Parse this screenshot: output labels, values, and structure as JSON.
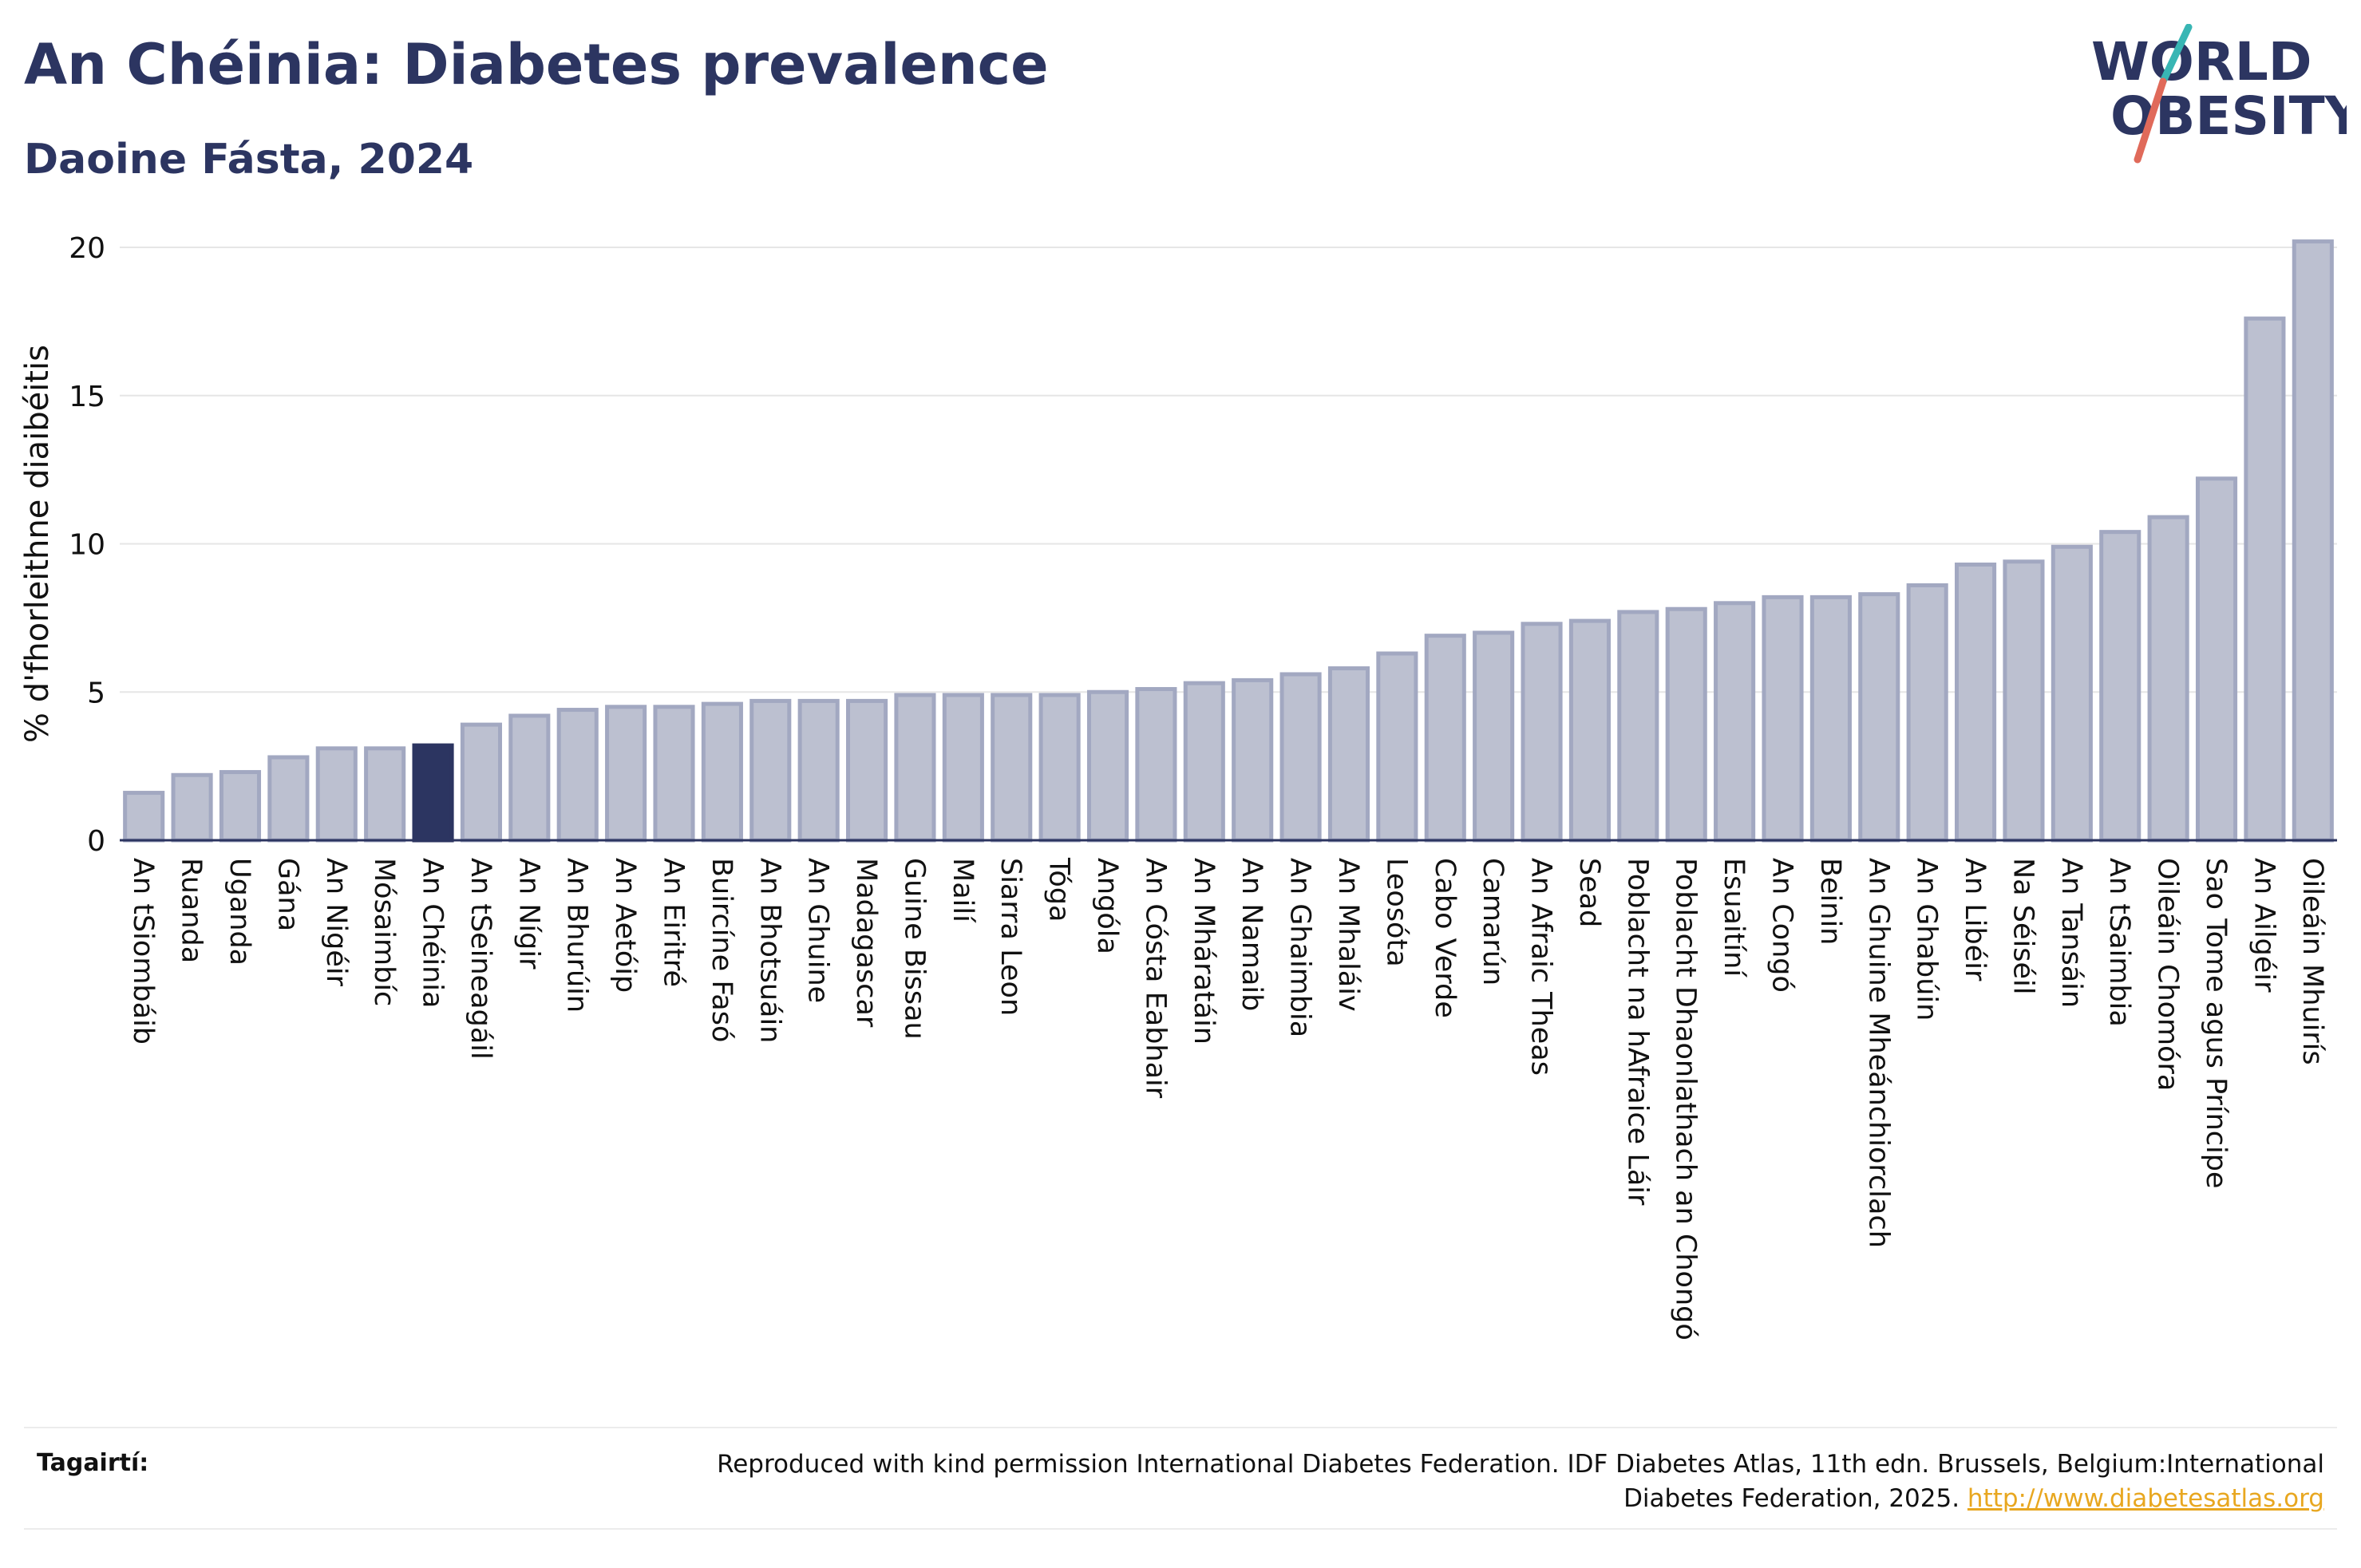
{
  "header": {
    "title": "An Chéinia: Diabetes prevalence",
    "subtitle": "Daoine Fásta, 2024"
  },
  "logo": {
    "line1": "WORLD",
    "line2": "OBESITY",
    "icon": "world-obesity-logo"
  },
  "colors": {
    "bar": "#bcc0d0",
    "bar_stroke": "#a2a8c1",
    "highlight": "#2c3561",
    "title": "#2c3561",
    "grid": "#e6e6e6",
    "axis": "#2c3561",
    "link": "#e8a720",
    "logo_teal": "#38b6b4",
    "logo_red": "#e06a5a"
  },
  "chart_data": {
    "type": "bar",
    "title": "An Chéinia: Diabetes prevalence",
    "subtitle": "Daoine Fásta, 2024",
    "xlabel": "",
    "ylabel": "% d'fhorleithne diaibéitis",
    "ylim": [
      0,
      20
    ],
    "yticks": [
      0,
      5,
      10,
      15,
      20
    ],
    "grid": true,
    "highlight": "An Chéinia",
    "categories": [
      "An tSiombáib",
      "Ruanda",
      "Uganda",
      "Gána",
      "An Nigéir",
      "Mósaimbíc",
      "An Chéinia",
      "An tSeineagáil",
      "An Nígir",
      "An Bhurúin",
      "An Aetóip",
      "An Eiritré",
      "Buircíne Fasó",
      "An Bhotsuáin",
      "An Ghuine",
      "Madagascar",
      "Guine Bissau",
      "Mailí",
      "Siarra Leon",
      "Tóga",
      "Angóla",
      "An Cósta Eabhair",
      "An Mháratáin",
      "An Namaib",
      "An Ghaimbia",
      "An Mhaláiv",
      "Leosóta",
      "Cabo Verde",
      "Camarún",
      "An Afraic Theas",
      "Sead",
      "Poblacht na hAfraice Láir",
      "Poblacht Dhaonlathach an Chongó",
      "Esuaitíní",
      "An Congó",
      "Beinin",
      "An Ghuine Mheánchiorclach",
      "An Ghabúin",
      "An Libéir",
      "Na Séiséil",
      "An Tansáin",
      "An tSaimbia",
      "Oileáin Chomóra",
      "Sao Tome agus Príncipe",
      "An Ailgéir",
      "Oileáin Mhuirís"
    ],
    "values": [
      1.6,
      2.2,
      2.3,
      2.8,
      3.1,
      3.1,
      3.2,
      3.9,
      4.2,
      4.4,
      4.5,
      4.5,
      4.6,
      4.7,
      4.7,
      4.7,
      4.9,
      4.9,
      4.9,
      4.9,
      5.0,
      5.1,
      5.3,
      5.4,
      5.6,
      5.8,
      6.3,
      6.9,
      7.0,
      7.3,
      7.4,
      7.7,
      7.8,
      8.0,
      8.2,
      8.2,
      8.3,
      8.6,
      9.3,
      9.4,
      9.9,
      10.4,
      10.9,
      12.2,
      17.6,
      20.2
    ]
  },
  "footer": {
    "label": "Tagairtí:",
    "text": "Reproduced with kind permission International Diabetes Federation. IDF Diabetes Atlas, 11th edn. Brussels, Belgium:International Diabetes Federation, 2025.",
    "link": "http://www.diabetesatlas.org"
  }
}
